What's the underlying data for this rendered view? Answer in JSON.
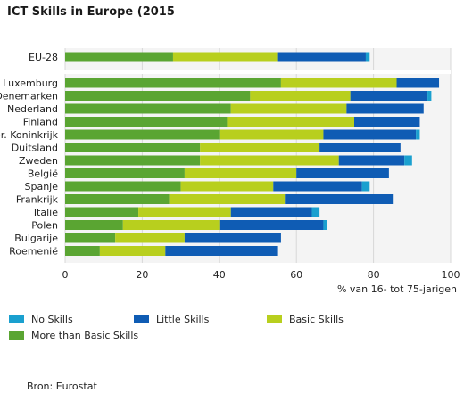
{
  "title": "ICT Skills in Europe (2015",
  "source": "Bron: Eurostat",
  "chart_data": {
    "type": "bar",
    "orientation": "horizontal",
    "stacked": true,
    "xlabel": "% van 16- tot 75-jarigen",
    "ylabel": "",
    "xlim": [
      0,
      100
    ],
    "xticks": [
      0,
      20,
      40,
      60,
      80,
      100
    ],
    "grid": true,
    "legend_position": "bottom",
    "categories": [
      "EU-28",
      "Luxemburg",
      "Denemarken",
      "Nederland",
      "Finland",
      "Ver. Koninkrijk",
      "Duitsland",
      "Zweden",
      "België",
      "Spanje",
      "Frankrijk",
      "Italië",
      "Polen",
      "Bulgarije",
      "Roemenië"
    ],
    "series": [
      {
        "name": "More than Basic Skills",
        "color": "#5aa532",
        "values": [
          28,
          56,
          48,
          43,
          42,
          40,
          35,
          35,
          31,
          30,
          27,
          19,
          15,
          13,
          9
        ]
      },
      {
        "name": "Basic Skills",
        "color": "#b8cf1e",
        "values": [
          27,
          30,
          26,
          30,
          33,
          27,
          31,
          36,
          29,
          24,
          30,
          24,
          25,
          18,
          17
        ]
      },
      {
        "name": "Little Skills",
        "color": "#0f5cb4",
        "values": [
          23,
          11,
          20,
          20,
          17,
          24,
          21,
          17,
          24,
          23,
          28,
          21,
          27,
          25,
          29
        ]
      },
      {
        "name": "No Skills",
        "color": "#1aa0cf",
        "values": [
          1,
          0,
          1,
          0,
          0,
          1,
          0,
          2,
          0,
          2,
          0,
          2,
          1,
          0,
          0
        ]
      }
    ],
    "legend_order": [
      "No Skills",
      "Little Skills",
      "Basic Skills",
      "More than Basic Skills"
    ]
  }
}
